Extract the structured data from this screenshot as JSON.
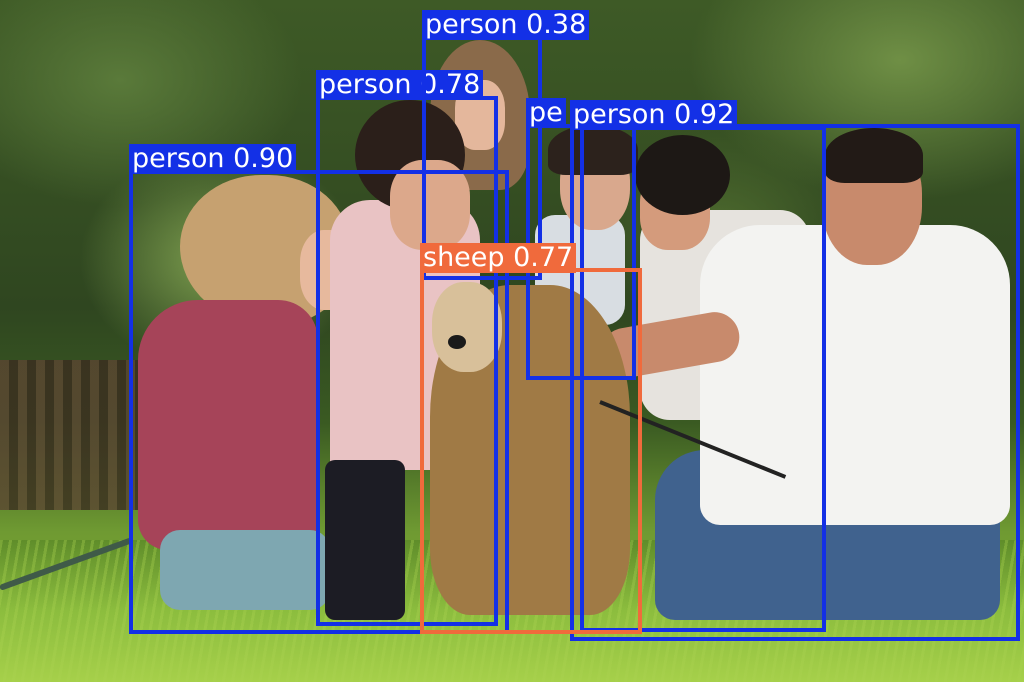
{
  "image": {
    "description_classes": [
      "person",
      "sheep"
    ],
    "colors": {
      "person": "#1330e6",
      "sheep": "#f06a3c"
    }
  },
  "detections": [
    {
      "label": "person",
      "score": "0.90",
      "text": "person 0.90",
      "color": "#1330e6"
    },
    {
      "label": "person",
      "score": "0.78",
      "text": "person 0.78",
      "color": "#1330e6"
    },
    {
      "label": "person",
      "score": "0.38",
      "text": "person 0.38",
      "color": "#1330e6"
    },
    {
      "label": "person",
      "score": "0.92",
      "text": "person 0.92",
      "color": "#1330e6"
    },
    {
      "label": "person",
      "text": "pe",
      "color": "#1330e6"
    },
    {
      "label": "sheep",
      "score": "0.77",
      "text": "sheep 0.77",
      "color": "#f06a3c"
    }
  ]
}
